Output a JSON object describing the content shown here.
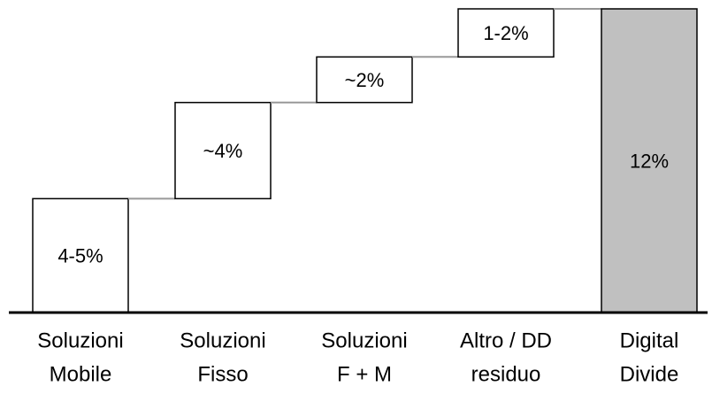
{
  "chart_data": {
    "type": "waterfall",
    "categories": [
      [
        "Soluzioni",
        "Mobile"
      ],
      [
        "Soluzioni",
        "Fisso"
      ],
      [
        "Soluzioni",
        "F + M"
      ],
      [
        "Altro / DD",
        "residuo"
      ]
    ],
    "values": [
      4.5,
      3.8,
      1.8,
      1.9
    ],
    "value_labels": [
      "4-5%",
      "~4%",
      "~2%",
      "1-2%"
    ],
    "color": "#ffffff",
    "total": {
      "category": [
        "Digital",
        "Divide"
      ],
      "value": 12,
      "value_label": "12%",
      "color": "#c0c0c0"
    }
  }
}
